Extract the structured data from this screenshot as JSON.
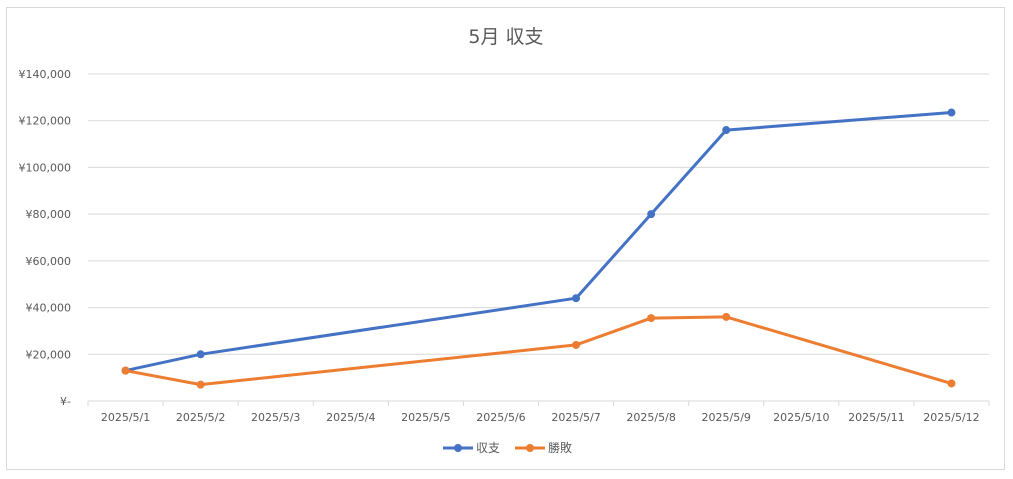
{
  "chart_data": {
    "type": "line",
    "title": "5月 収支",
    "categories": [
      "2025/5/1",
      "2025/5/2",
      "2025/5/3",
      "2025/5/4",
      "2025/5/5",
      "2025/5/6",
      "2025/5/7",
      "2025/5/8",
      "2025/5/9",
      "2025/5/10",
      "2025/5/11",
      "2025/5/12"
    ],
    "y_ticks": [
      "¥-",
      "¥20,000",
      "¥40,000",
      "¥60,000",
      "¥80,000",
      "¥100,000",
      "¥120,000",
      "¥140,000"
    ],
    "ylim": [
      0,
      140000
    ],
    "grid": true,
    "legend_position": "bottom",
    "series": [
      {
        "name": "収支",
        "color": "#4472c4",
        "points": [
          {
            "x": "2025/5/1",
            "y": 13000
          },
          {
            "x": "2025/5/2",
            "y": 20000
          },
          {
            "x": "2025/5/7",
            "y": 44000
          },
          {
            "x": "2025/5/8",
            "y": 80000
          },
          {
            "x": "2025/5/9",
            "y": 116000
          },
          {
            "x": "2025/5/12",
            "y": 123500
          }
        ]
      },
      {
        "name": "勝敗",
        "color": "#ed7d31",
        "points": [
          {
            "x": "2025/5/1",
            "y": 13000
          },
          {
            "x": "2025/5/2",
            "y": 7000
          },
          {
            "x": "2025/5/7",
            "y": 24000
          },
          {
            "x": "2025/5/8",
            "y": 35500
          },
          {
            "x": "2025/5/9",
            "y": 36000
          },
          {
            "x": "2025/5/12",
            "y": 7500
          }
        ]
      }
    ]
  }
}
